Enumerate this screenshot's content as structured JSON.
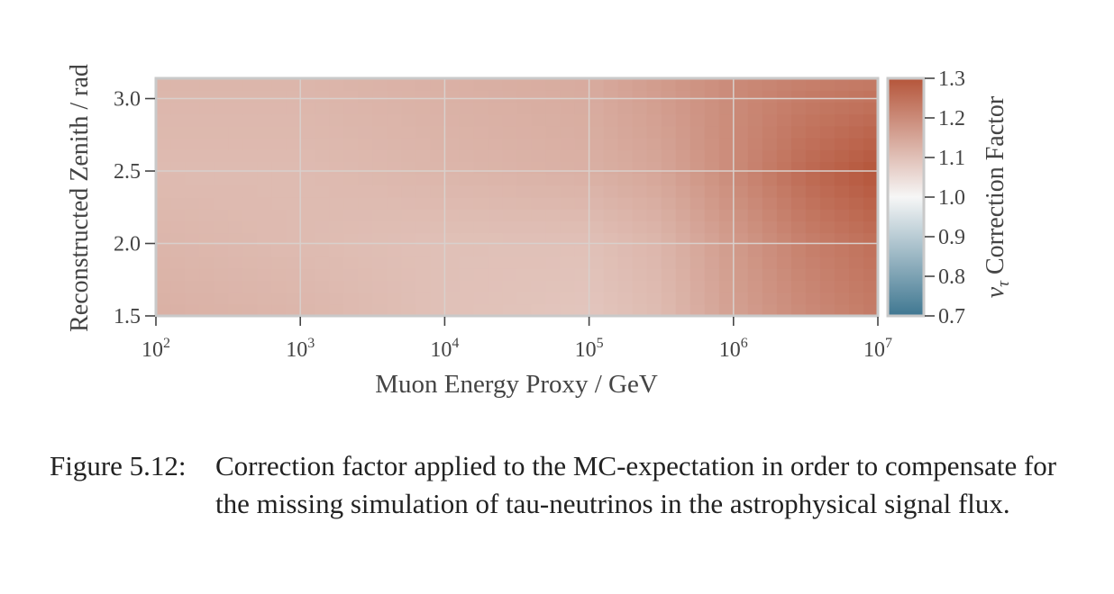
{
  "chart_data": {
    "type": "heatmap",
    "title": "",
    "xlabel": "Muon Energy Proxy / GeV",
    "ylabel": "Reconstructed Zenith / rad",
    "x_scale": "log",
    "xlim": [
      100,
      10000000
    ],
    "ylim": [
      1.5,
      3.14
    ],
    "x_ticks": [
      {
        "value": 100,
        "base": "10",
        "exp": "2"
      },
      {
        "value": 1000,
        "base": "10",
        "exp": "3"
      },
      {
        "value": 10000,
        "base": "10",
        "exp": "4"
      },
      {
        "value": 100000,
        "base": "10",
        "exp": "5"
      },
      {
        "value": 1000000,
        "base": "10",
        "exp": "6"
      },
      {
        "value": 10000000,
        "base": "10",
        "exp": "7"
      }
    ],
    "y_ticks": [
      {
        "value": 1.5,
        "label": "1.5"
      },
      {
        "value": 2.0,
        "label": "2.0"
      },
      {
        "value": 2.5,
        "label": "2.5"
      },
      {
        "value": 3.0,
        "label": "3.0"
      }
    ],
    "grid": true,
    "colorbar": {
      "label_symbol": "ν",
      "label_subscript": "τ",
      "label_text": " Correction Factor",
      "range": [
        0.7,
        1.3
      ],
      "ticks": [
        {
          "value": 1.3,
          "label": "1.3"
        },
        {
          "value": 1.2,
          "label": "1.2"
        },
        {
          "value": 1.1,
          "label": "1.1"
        },
        {
          "value": 1.0,
          "label": "1.0"
        },
        {
          "value": 0.9,
          "label": "0.9"
        },
        {
          "value": 0.8,
          "label": "0.8"
        },
        {
          "value": 0.7,
          "label": "0.7"
        }
      ],
      "low_color": "#3f7791",
      "mid_color": "#f6f6f6",
      "high_color": "#b5553a"
    },
    "zenith_rows": [
      1.5,
      2.0,
      2.5,
      3.14
    ],
    "energy_columns_log10": [
      2,
      3,
      4,
      5,
      5.5,
      6,
      6.5,
      7
    ],
    "values": [
      [
        1.13,
        1.12,
        1.1,
        1.09,
        1.11,
        1.16,
        1.2,
        1.23
      ],
      [
        1.12,
        1.11,
        1.1,
        1.1,
        1.12,
        1.17,
        1.22,
        1.25
      ],
      [
        1.11,
        1.11,
        1.12,
        1.13,
        1.15,
        1.2,
        1.26,
        1.3
      ],
      [
        1.12,
        1.12,
        1.13,
        1.14,
        1.17,
        1.2,
        1.22,
        1.23
      ]
    ]
  },
  "caption": {
    "label": "Figure 5.12:",
    "text": "Correction factor applied to the MC-expectation in order to compensate for the missing simulation of tau-neutrinos in the astrophysical signal flux."
  }
}
